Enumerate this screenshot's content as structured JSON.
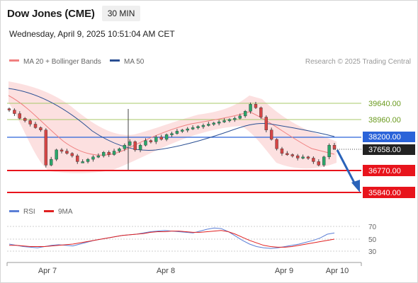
{
  "header": {
    "title": "Dow Jones (CME)",
    "interval": "30 MIN",
    "datetime": "Wednesday, April 9, 2025 10:51:04 AM CET"
  },
  "legend": {
    "ma20_label": "MA 20 + Bollinger Bands",
    "ma20_color": "#f08080",
    "ma50_label": "MA 50",
    "ma50_color": "#2a4f93",
    "copyright": "Research © 2025 Trading Central"
  },
  "rsi_legend": {
    "rsi_label": "RSI",
    "rsi_color": "#5b7fd6",
    "ma9_label": "9MA",
    "ma9_color": "#e02020"
  },
  "chart_data": {
    "type": "candlestick",
    "x_ticks": [
      "Apr 7",
      "Apr 8",
      "Apr 9",
      "Apr 10"
    ],
    "levels": [
      {
        "value": "39640.00",
        "kind": "resistance"
      },
      {
        "value": "38960.00",
        "kind": "resistance"
      },
      {
        "value": "38200.00",
        "kind": "pivot"
      },
      {
        "value": "37658.00",
        "kind": "last-price"
      },
      {
        "value": "36770.00",
        "kind": "support"
      },
      {
        "value": "35840.00",
        "kind": "support"
      }
    ],
    "price_series": [
      39350,
      39200,
      39000,
      38900,
      38750,
      38600,
      38500,
      37000,
      37250,
      37650,
      37600,
      37500,
      37400,
      37150,
      37150,
      37250,
      37350,
      37400,
      37550,
      37450,
      37600,
      37700,
      37850,
      38000,
      37650,
      37850,
      38050,
      38000,
      38200,
      38100,
      38300,
      38350,
      38450,
      38500,
      38550,
      38600,
      38650,
      38700,
      38750,
      38800,
      38850,
      38900,
      38950,
      39000,
      39100,
      39300,
      39600,
      39450,
      39050,
      38500,
      38100,
      37700,
      37500,
      37450,
      37400,
      37300,
      37350,
      37300,
      37150,
      37000,
      37350,
      37850,
      37700
    ],
    "rsi_series": [
      42,
      40,
      38,
      37,
      36,
      38,
      40,
      41,
      40,
      39,
      42,
      45,
      48,
      50,
      52,
      54,
      56,
      57,
      58,
      60,
      62,
      63,
      64,
      63,
      62,
      61,
      60,
      63,
      66,
      68,
      67,
      62,
      55,
      48,
      42,
      38,
      36,
      35,
      36,
      38,
      40,
      42,
      45,
      48,
      52,
      58,
      60
    ],
    "rsi_ma9_series": [
      40,
      40,
      39,
      38,
      38,
      38,
      39,
      40,
      41,
      42,
      44,
      46,
      48,
      50,
      52,
      54,
      56,
      57,
      58,
      59,
      61,
      62,
      62,
      63,
      63,
      62,
      61,
      61,
      62,
      63,
      64,
      62,
      58,
      53,
      48,
      44,
      40,
      38,
      37,
      37,
      38,
      40,
      42,
      44,
      46,
      48,
      50
    ],
    "rsi_ticks": [
      "70",
      "50",
      "30"
    ],
    "rsi_ylim": [
      20,
      80
    ],
    "forecast": "bearish arrow toward 35840.00"
  }
}
